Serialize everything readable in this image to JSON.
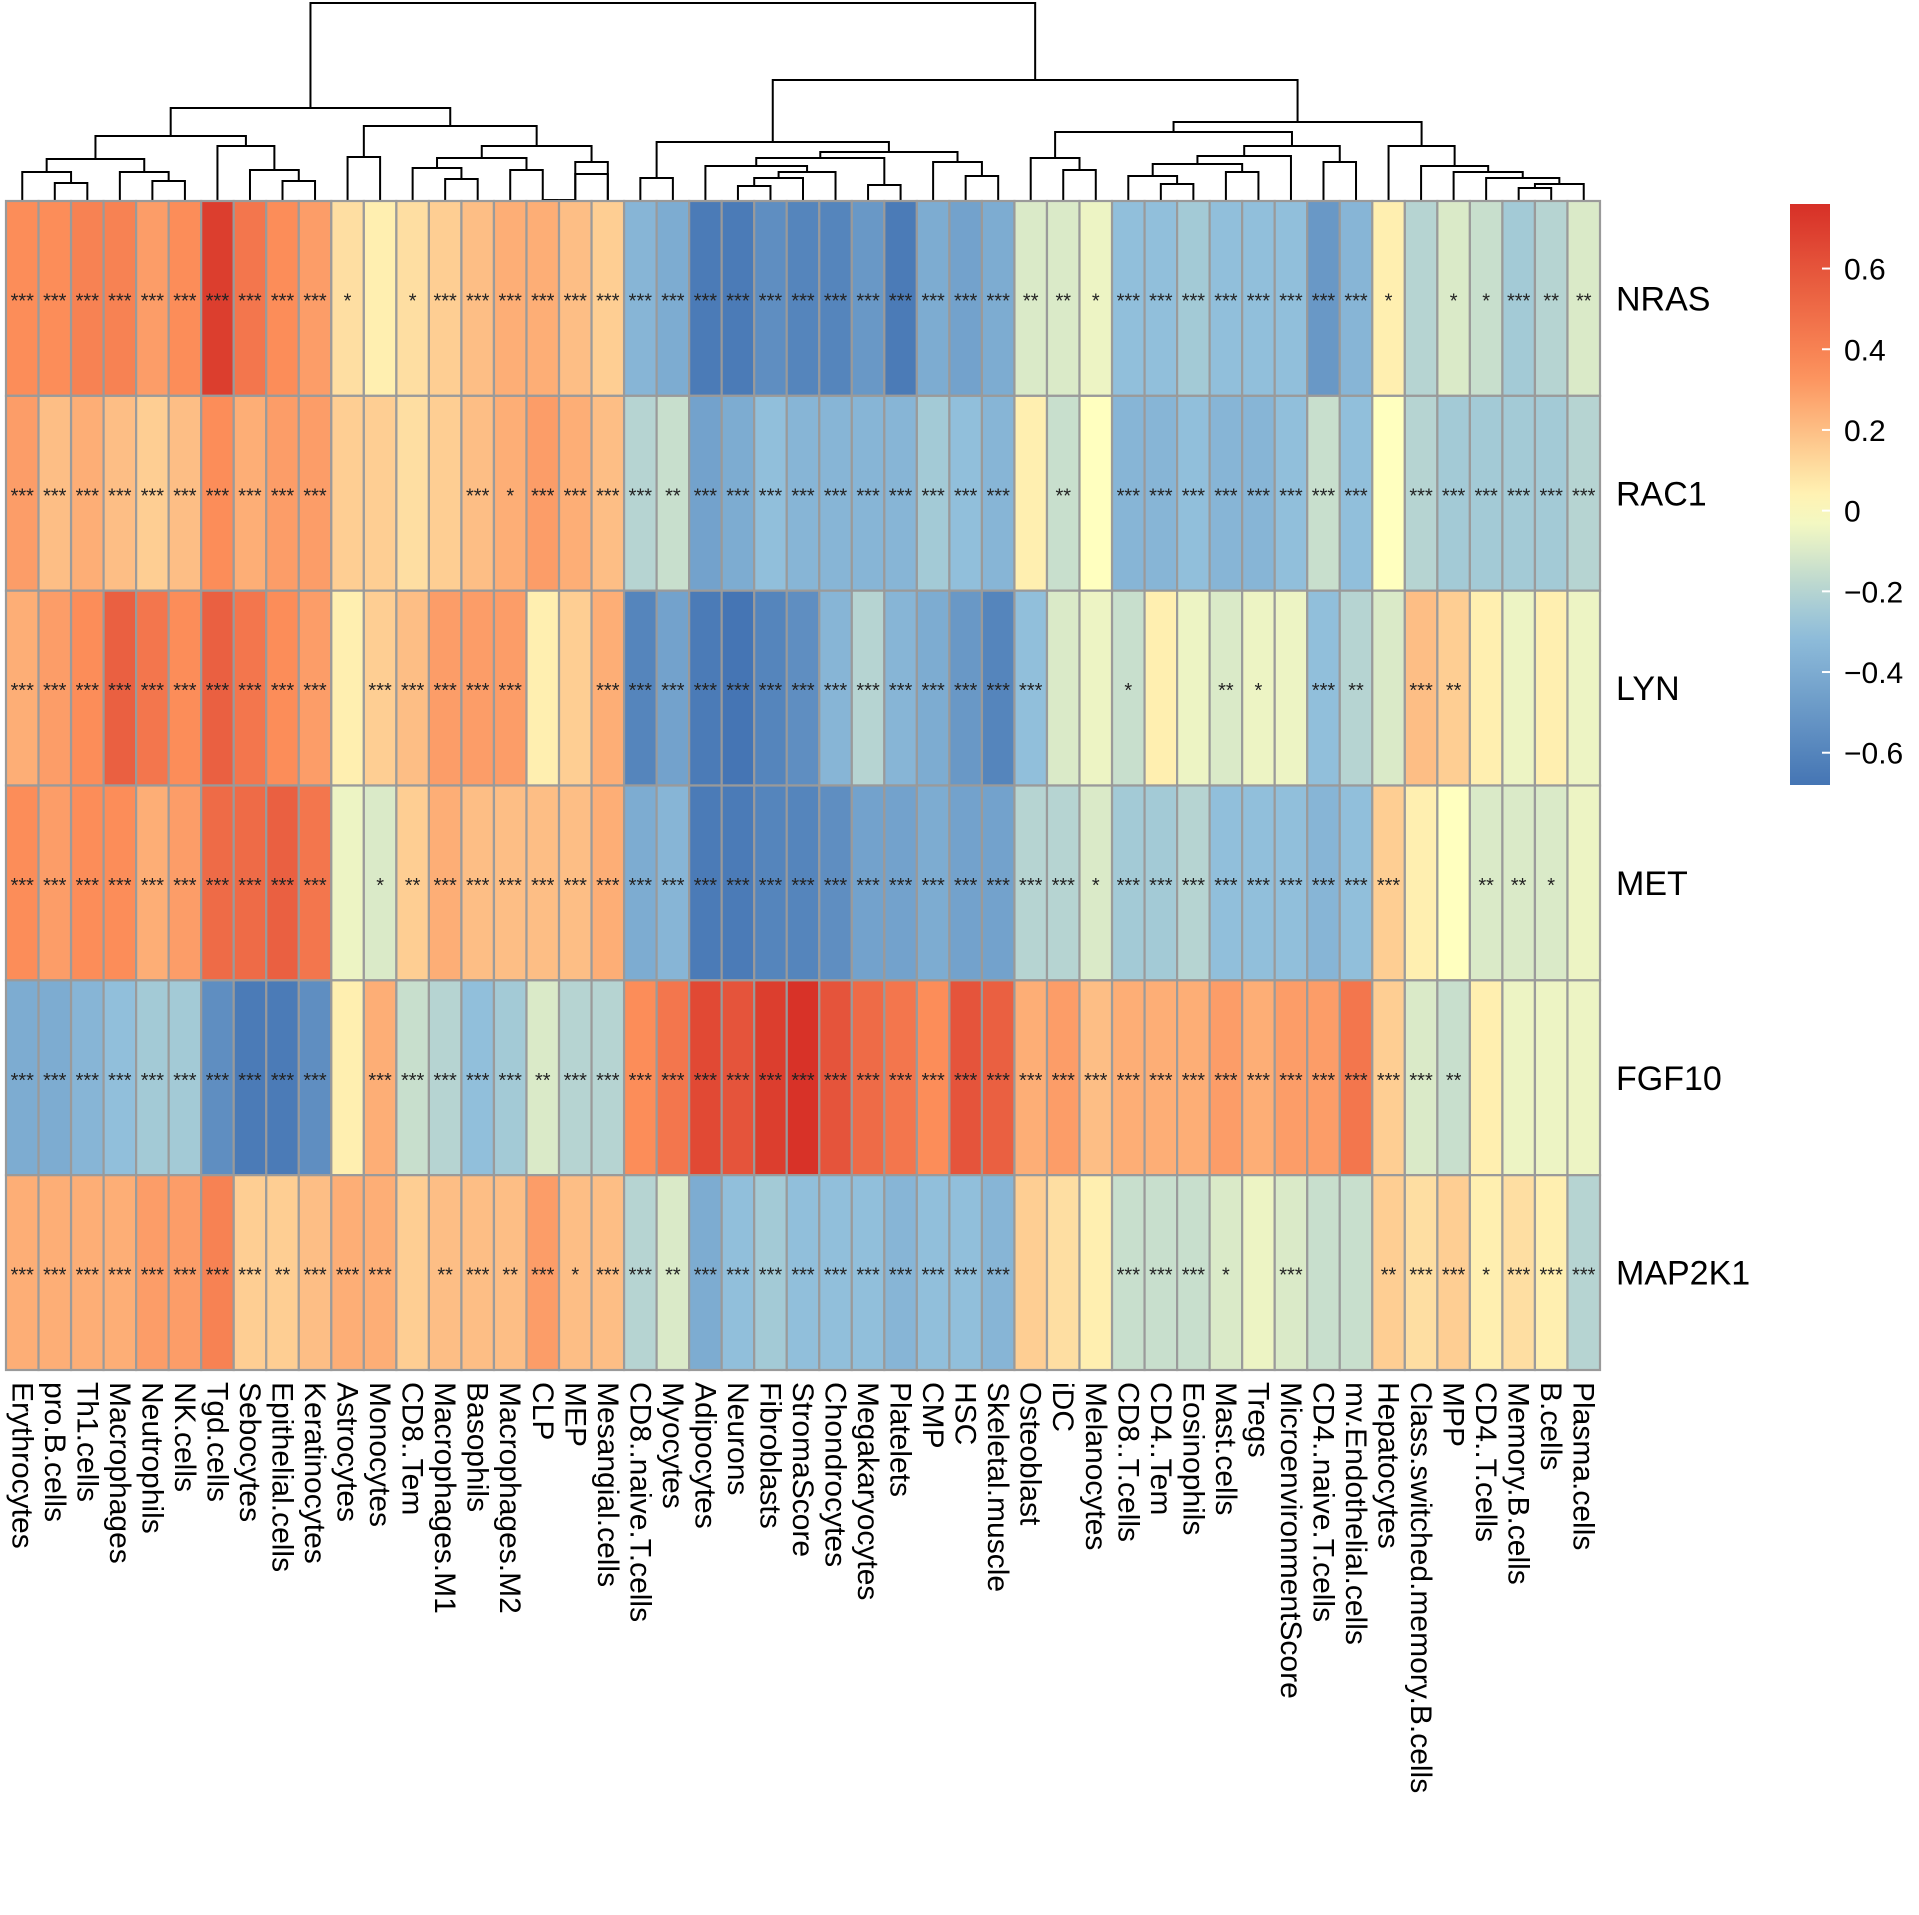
{
  "chart_data": {
    "type": "heatmap",
    "title": "",
    "rows": [
      "NRAS",
      "RAC1",
      "LYN",
      "MET",
      "FGF10",
      "MAP2K1"
    ],
    "columns": [
      "Erythrocytes",
      "pro.B.cells",
      "Th1.cells",
      "Macrophages",
      "Neutrophils",
      "NK.cells",
      "Tgd.cells",
      "Sebocytes",
      "Epithelial.cells",
      "Keratinocytes",
      "Astrocytes",
      "Monocytes",
      "CD8..Tem",
      "Macrophages.M1",
      "Basophils",
      "Macrophages.M2",
      "CLP",
      "MEP",
      "Mesangial.cells",
      "CD8..naive.T.cells",
      "Myocytes",
      "Adipocytes",
      "Neurons",
      "Fibroblasts",
      "StromaScore",
      "Chondrocytes",
      "Megakaryocytes",
      "Platelets",
      "CMP",
      "HSC",
      "Skeletal.muscle",
      "Osteoblast",
      "iDC",
      "Melanocytes",
      "CD8..T.cells",
      "CD4..Tem",
      "Eosinophils",
      "Mast.cells",
      "Tregs",
      "MicroenvironmentScore",
      "CD4..naive.T.cells",
      "mv.Endothelial.cells",
      "Hepatocytes",
      "Class.switched.memory.B.cells",
      "MPP",
      "CD4..T.cells",
      "Memory.B.cells",
      "B.cells",
      "Plasma.cells"
    ],
    "values": [
      [
        0.35,
        0.35,
        0.4,
        0.4,
        0.3,
        0.35,
        0.7,
        0.45,
        0.35,
        0.3,
        0.1,
        0.05,
        0.1,
        0.15,
        0.2,
        0.25,
        0.25,
        0.2,
        0.15,
        -0.35,
        -0.4,
        -0.65,
        -0.65,
        -0.55,
        -0.6,
        -0.6,
        -0.5,
        -0.65,
        -0.4,
        -0.45,
        -0.4,
        -0.1,
        -0.1,
        -0.05,
        -0.3,
        -0.3,
        -0.25,
        -0.3,
        -0.3,
        -0.3,
        -0.5,
        -0.35,
        0.05,
        -0.2,
        -0.1,
        -0.15,
        -0.25,
        -0.2,
        -0.1
      ],
      [
        0.3,
        0.2,
        0.25,
        0.2,
        0.15,
        0.2,
        0.35,
        0.25,
        0.3,
        0.3,
        0.15,
        0.15,
        0.1,
        0.15,
        0.2,
        0.25,
        0.3,
        0.25,
        0.2,
        -0.2,
        -0.15,
        -0.45,
        -0.4,
        -0.3,
        -0.35,
        -0.35,
        -0.35,
        -0.35,
        -0.25,
        -0.3,
        -0.35,
        0.05,
        -0.15,
        0.0,
        -0.35,
        -0.35,
        -0.3,
        -0.35,
        -0.35,
        -0.3,
        -0.15,
        -0.3,
        0.0,
        -0.2,
        -0.25,
        -0.25,
        -0.25,
        -0.25,
        -0.2
      ],
      [
        0.25,
        0.3,
        0.35,
        0.55,
        0.45,
        0.35,
        0.55,
        0.45,
        0.35,
        0.3,
        0.05,
        0.15,
        0.2,
        0.3,
        0.3,
        0.3,
        0.05,
        0.15,
        0.25,
        -0.6,
        -0.45,
        -0.65,
        -0.7,
        -0.6,
        -0.55,
        -0.35,
        -0.2,
        -0.35,
        -0.4,
        -0.5,
        -0.6,
        -0.3,
        -0.1,
        -0.05,
        -0.15,
        0.05,
        -0.05,
        -0.1,
        -0.05,
        -0.05,
        -0.3,
        -0.2,
        -0.1,
        0.2,
        0.15,
        0.05,
        -0.05,
        0.05,
        -0.05
      ],
      [
        0.35,
        0.3,
        0.35,
        0.35,
        0.25,
        0.3,
        0.5,
        0.5,
        0.55,
        0.45,
        -0.05,
        -0.1,
        0.15,
        0.25,
        0.2,
        0.2,
        0.2,
        0.2,
        0.25,
        -0.4,
        -0.35,
        -0.65,
        -0.65,
        -0.6,
        -0.6,
        -0.55,
        -0.45,
        -0.45,
        -0.4,
        -0.45,
        -0.45,
        -0.2,
        -0.2,
        -0.1,
        -0.25,
        -0.25,
        -0.2,
        -0.3,
        -0.3,
        -0.3,
        -0.35,
        -0.3,
        0.15,
        0.05,
        0.0,
        -0.1,
        -0.1,
        -0.1,
        -0.05
      ],
      [
        -0.4,
        -0.4,
        -0.35,
        -0.3,
        -0.25,
        -0.25,
        -0.55,
        -0.65,
        -0.65,
        -0.55,
        0.05,
        0.25,
        -0.15,
        -0.2,
        -0.3,
        -0.25,
        -0.1,
        -0.2,
        -0.2,
        0.35,
        0.45,
        0.65,
        0.6,
        0.7,
        0.75,
        0.6,
        0.5,
        0.45,
        0.35,
        0.6,
        0.55,
        0.25,
        0.3,
        0.2,
        0.25,
        0.25,
        0.25,
        0.3,
        0.25,
        0.3,
        0.3,
        0.45,
        0.15,
        -0.1,
        -0.15,
        0.05,
        -0.05,
        -0.05,
        -0.05
      ],
      [
        0.25,
        0.25,
        0.25,
        0.25,
        0.3,
        0.3,
        0.4,
        0.15,
        0.15,
        0.2,
        0.25,
        0.25,
        0.15,
        0.2,
        0.2,
        0.2,
        0.3,
        0.2,
        0.2,
        -0.2,
        -0.1,
        -0.4,
        -0.3,
        -0.25,
        -0.3,
        -0.3,
        -0.3,
        -0.35,
        -0.3,
        -0.3,
        -0.35,
        0.15,
        0.1,
        0.05,
        -0.15,
        -0.15,
        -0.15,
        -0.1,
        -0.05,
        -0.1,
        -0.15,
        -0.15,
        0.15,
        0.1,
        0.15,
        0.05,
        0.1,
        0.05,
        -0.2
      ]
    ],
    "significance": [
      [
        "***",
        "***",
        "***",
        "***",
        "***",
        "***",
        "***",
        "***",
        "***",
        "***",
        "*",
        "",
        "*",
        "***",
        "***",
        "***",
        "***",
        "***",
        "***",
        "***",
        "***",
        "***",
        "***",
        "***",
        "***",
        "***",
        "***",
        "***",
        "***",
        "***",
        "***",
        "**",
        "**",
        "*",
        "***",
        "***",
        "***",
        "***",
        "***",
        "***",
        "***",
        "***",
        "*",
        "",
        "*",
        "*",
        "***",
        "**",
        "**"
      ],
      [
        "***",
        "***",
        "***",
        "***",
        "***",
        "***",
        "***",
        "***",
        "***",
        "***",
        "",
        "",
        "",
        "",
        "***",
        "*",
        "***",
        "***",
        "***",
        "***",
        "**",
        "***",
        "***",
        "***",
        "***",
        "***",
        "***",
        "***",
        "***",
        "***",
        "***",
        "",
        "**",
        "",
        "***",
        "***",
        "***",
        "***",
        "***",
        "***",
        "***",
        "***",
        "",
        "***",
        "***",
        "***",
        "***",
        "***",
        "***"
      ],
      [
        "***",
        "***",
        "***",
        "***",
        "***",
        "***",
        "***",
        "***",
        "***",
        "***",
        "",
        "***",
        "***",
        "***",
        "***",
        "***",
        "",
        "",
        "***",
        "***",
        "***",
        "***",
        "***",
        "***",
        "***",
        "***",
        "***",
        "***",
        "***",
        "***",
        "***",
        "***",
        "",
        "",
        "*",
        "",
        "",
        "**",
        "*",
        "",
        "***",
        "**",
        "",
        "***",
        "**",
        "",
        "",
        "",
        ""
      ],
      [
        "***",
        "***",
        "***",
        "***",
        "***",
        "***",
        "***",
        "***",
        "***",
        "***",
        "",
        "*",
        "**",
        "***",
        "***",
        "***",
        "***",
        "***",
        "***",
        "***",
        "***",
        "***",
        "***",
        "***",
        "***",
        "***",
        "***",
        "***",
        "***",
        "***",
        "***",
        "***",
        "***",
        "*",
        "***",
        "***",
        "***",
        "***",
        "***",
        "***",
        "***",
        "***",
        "***",
        "",
        "",
        "**",
        "**",
        "*",
        ""
      ],
      [
        "***",
        "***",
        "***",
        "***",
        "***",
        "***",
        "***",
        "***",
        "***",
        "***",
        "",
        "***",
        "***",
        "***",
        "***",
        "***",
        "**",
        "***",
        "***",
        "***",
        "***",
        "***",
        "***",
        "***",
        "***",
        "***",
        "***",
        "***",
        "***",
        "***",
        "***",
        "***",
        "***",
        "***",
        "***",
        "***",
        "***",
        "***",
        "***",
        "***",
        "***",
        "***",
        "***",
        "***",
        "**",
        "",
        "",
        "",
        ""
      ],
      [
        "***",
        "***",
        "***",
        "***",
        "***",
        "***",
        "***",
        "***",
        "**",
        "***",
        "***",
        "***",
        "",
        "**",
        "***",
        "**",
        "***",
        "*",
        "***",
        "***",
        "**",
        "***",
        "***",
        "***",
        "***",
        "***",
        "***",
        "***",
        "***",
        "***",
        "***",
        "",
        "",
        "",
        "***",
        "***",
        "***",
        "*",
        "",
        "***",
        "",
        "",
        "**",
        "***",
        "***",
        "*",
        "***",
        "***",
        "***"
      ]
    ],
    "legend": {
      "ticks": [
        0.6,
        0.4,
        0.2,
        0,
        -0.2,
        -0.4,
        -0.6
      ],
      "tick_labels": [
        "0.6",
        "0.4",
        "0.2",
        "0",
        "−0.2",
        "−0.4",
        "−0.6"
      ],
      "range": [
        -0.68,
        0.76
      ]
    },
    "colors": {
      "low": "#4575b4",
      "mid_low": "#91bfdb",
      "mid": "#ffffbf",
      "mid_high": "#fc8d59",
      "high": "#d73027",
      "cell_border": "#9a9a9a",
      "dendrogram": "#000000"
    }
  }
}
